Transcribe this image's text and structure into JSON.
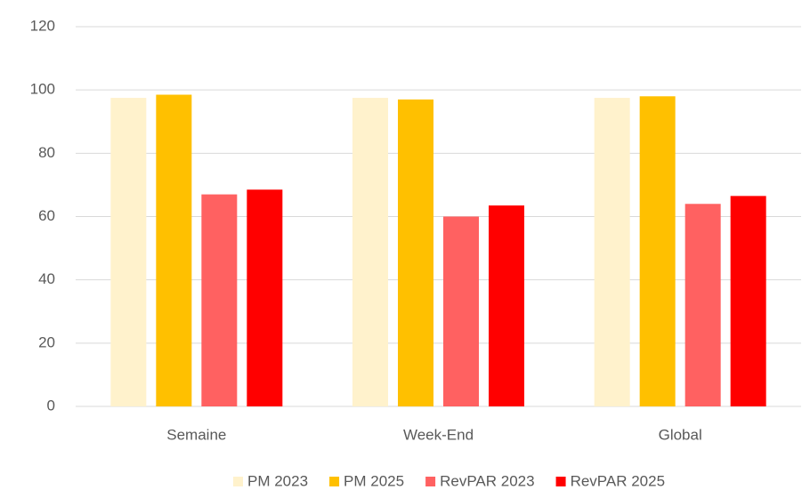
{
  "chart_data": {
    "type": "bar",
    "categories": [
      "Semaine",
      "Week-End",
      "Global"
    ],
    "series": [
      {
        "name": "PM 2023",
        "color": "#fff2cc",
        "values": [
          97.5,
          97.5,
          97.5
        ]
      },
      {
        "name": "PM 2025",
        "color": "#ffc000",
        "values": [
          98.5,
          97,
          98
        ]
      },
      {
        "name": "RevPAR 2023",
        "color": "#ff6161",
        "values": [
          67,
          60,
          64
        ]
      },
      {
        "name": "RevPAR 2025",
        "color": "#ff0000",
        "values": [
          68.5,
          63.5,
          66.5
        ]
      }
    ],
    "ylim": [
      0,
      120
    ],
    "yticks": [
      0,
      20,
      40,
      60,
      80,
      100,
      120
    ],
    "grid": true,
    "legend": "bottom"
  }
}
